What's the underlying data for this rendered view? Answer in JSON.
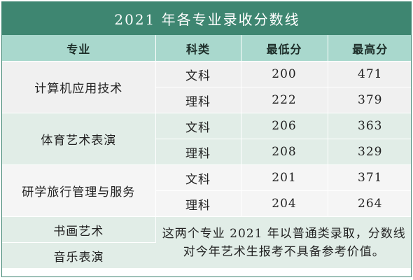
{
  "title": "2021 年各专业录收分数线",
  "headers": {
    "major": "专业",
    "category": "科类",
    "min": "最低分",
    "max": "最高分"
  },
  "groups": [
    {
      "major": "计算机应用技术",
      "rows": [
        {
          "category": "文科",
          "min": "200",
          "max": "471"
        },
        {
          "category": "理科",
          "min": "222",
          "max": "379"
        }
      ]
    },
    {
      "major": "体育艺术表演",
      "rows": [
        {
          "category": "文科",
          "min": "206",
          "max": "363"
        },
        {
          "category": "理科",
          "min": "208",
          "max": "329"
        }
      ]
    },
    {
      "major": "研学旅行管理与服务",
      "rows": [
        {
          "category": "文科",
          "min": "201",
          "max": "371"
        },
        {
          "category": "理科",
          "min": "204",
          "max": "264"
        }
      ]
    }
  ],
  "special": {
    "majors": [
      "书画艺术",
      "音乐表演"
    ],
    "note": "这两个专业 2021 年以普通类录取，分数线对今年艺术生报考不具备参考价值。"
  }
}
